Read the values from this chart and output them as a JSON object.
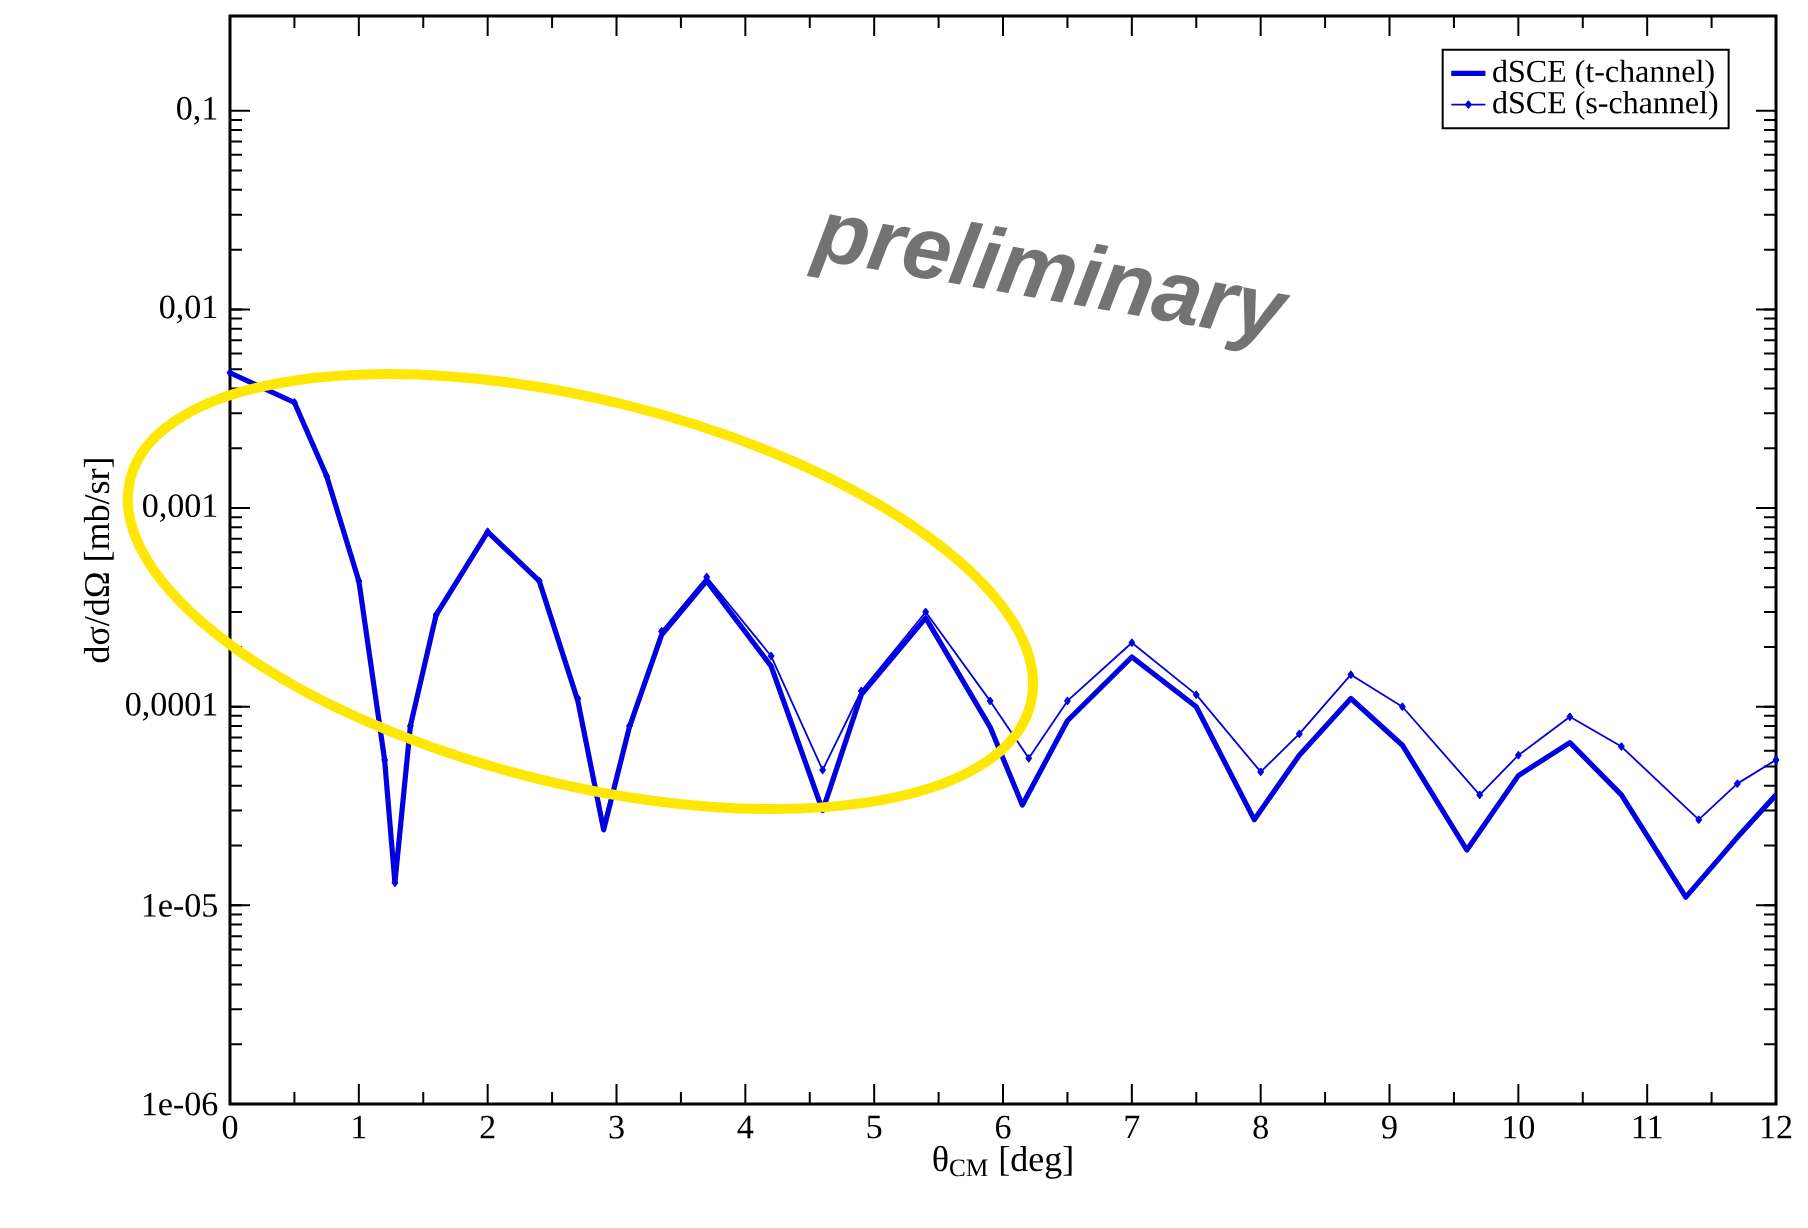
{
  "chart_data": {
    "type": "line",
    "xlabel": "θ$_{CM}$  [deg]",
    "ylabel": "dσ/dΩ  [mb/sr]",
    "log": "y",
    "grid": false,
    "legend": "top right",
    "xlim": [
      0,
      12
    ],
    "xticks": [
      0,
      1,
      2,
      3,
      4,
      5,
      6,
      7,
      8,
      9,
      10,
      11,
      12
    ],
    "ylim": [
      1e-06,
      0.3
    ],
    "yticks": [
      {
        "value": 1e-06,
        "label": "1e-06"
      },
      {
        "value": 1e-05,
        "label": "1e-05"
      },
      {
        "value": 0.0001,
        "label": "0,0001"
      },
      {
        "value": 0.001,
        "label": "0,001"
      },
      {
        "value": 0.01,
        "label": "0,01"
      },
      {
        "value": 0.1,
        "label": "0,1"
      }
    ],
    "annotations": [
      "preliminary"
    ],
    "series": [
      {
        "name": "dSCE (t-channel)",
        "color": "#0000e0",
        "marker": "none",
        "x": [
          0,
          0.5,
          0.75,
          1.0,
          1.2,
          1.28,
          1.4,
          1.6,
          2.0,
          2.4,
          2.7,
          2.9,
          3.1,
          3.35,
          3.7,
          4.2,
          4.6,
          4.9,
          5.4,
          5.9,
          6.15,
          6.5,
          7.0,
          7.5,
          7.95,
          8.3,
          8.7,
          9.1,
          9.6,
          10.0,
          10.4,
          10.8,
          11.3,
          11.7,
          12.0
        ],
        "values": [
          0.0048,
          0.0034,
          0.00145,
          0.00043,
          5.4e-05,
          1.3e-05,
          8e-05,
          0.00029,
          0.00076,
          0.00043,
          0.000107,
          2.4e-05,
          7.9e-05,
          0.00023,
          0.00043,
          0.00016,
          3e-05,
          0.000115,
          0.00028,
          7.9e-05,
          3.2e-05,
          8.5e-05,
          0.000178,
          0.0001,
          2.7e-05,
          5.7e-05,
          0.00011,
          6.4e-05,
          1.9e-05,
          4.5e-05,
          6.6e-05,
          3.6e-05,
          1.1e-05,
          2.2e-05,
          3.6e-05
        ]
      },
      {
        "name": "dSCE (s-channel)",
        "color": "#0000e0",
        "marker": "diamond",
        "x": [
          0,
          0.5,
          0.75,
          1.0,
          1.2,
          1.28,
          1.4,
          1.6,
          2.0,
          2.4,
          2.7,
          2.9,
          3.1,
          3.35,
          3.7,
          4.2,
          4.6,
          4.9,
          5.4,
          5.9,
          6.2,
          6.5,
          7.0,
          7.5,
          8.0,
          8.3,
          8.7,
          9.1,
          9.7,
          10.0,
          10.4,
          10.8,
          11.4,
          11.7,
          12.0
        ],
        "values": [
          0.0048,
          0.0034,
          0.00145,
          0.00043,
          5.4e-05,
          1.3e-05,
          8e-05,
          0.00029,
          0.00076,
          0.00043,
          0.00011,
          2.6e-05,
          8e-05,
          0.00024,
          0.00045,
          0.00018,
          4.8e-05,
          0.00012,
          0.0003,
          0.000107,
          5.5e-05,
          0.000107,
          0.00021,
          0.000115,
          4.7e-05,
          7.3e-05,
          0.000145,
          0.0001,
          3.6e-05,
          5.7e-05,
          8.9e-05,
          6.3e-05,
          2.7e-05,
          4.1e-05,
          5.4e-05
        ]
      }
    ]
  }
}
